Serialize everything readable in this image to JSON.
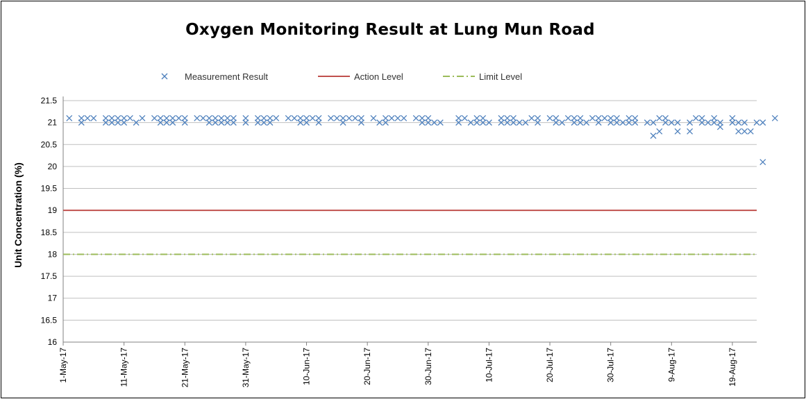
{
  "chart_data": {
    "type": "scatter",
    "title": "Oxygen Monitoring Result at Lung Mun Road",
    "ylabel": "Unit Concentration (%)",
    "xlabel": "",
    "ylim": [
      16,
      21.5
    ],
    "yticks": [
      21.5,
      21,
      20.5,
      20,
      19.5,
      19,
      18.5,
      18,
      17.5,
      17,
      16.5,
      16
    ],
    "xlim": [
      "2017-05-01",
      "2017-08-23"
    ],
    "xtick_labels": [
      "1-May-17",
      "11-May-17",
      "21-May-17",
      "31-May-17",
      "10-Jun-17",
      "20-Jun-17",
      "30-Jun-17",
      "10-Jul-17",
      "20-Jul-17",
      "30-Jul-17",
      "9-Aug-17",
      "19-Aug-17"
    ],
    "xtick_dates": [
      "2017-05-01",
      "2017-05-11",
      "2017-05-21",
      "2017-05-31",
      "2017-06-10",
      "2017-06-20",
      "2017-06-30",
      "2017-07-10",
      "2017-07-20",
      "2017-07-30",
      "2017-08-09",
      "2017-08-19"
    ],
    "grid": true,
    "legend_position": "top",
    "series": [
      {
        "name": "Measurement Result",
        "marker": "x",
        "color": "#4f81bd",
        "points": [
          [
            "2017-05-02",
            21.1
          ],
          [
            "2017-05-04",
            21.0
          ],
          [
            "2017-05-04",
            21.1
          ],
          [
            "2017-05-05",
            21.1
          ],
          [
            "2017-05-06",
            21.1
          ],
          [
            "2017-05-08",
            21.1
          ],
          [
            "2017-05-08",
            21.0
          ],
          [
            "2017-05-09",
            21.0
          ],
          [
            "2017-05-09",
            21.1
          ],
          [
            "2017-05-10",
            21.0
          ],
          [
            "2017-05-10",
            21.1
          ],
          [
            "2017-05-11",
            21.0
          ],
          [
            "2017-05-11",
            21.1
          ],
          [
            "2017-05-12",
            21.1
          ],
          [
            "2017-05-13",
            21.0
          ],
          [
            "2017-05-14",
            21.1
          ],
          [
            "2017-05-16",
            21.1
          ],
          [
            "2017-05-17",
            21.1
          ],
          [
            "2017-05-17",
            21.0
          ],
          [
            "2017-05-18",
            21.0
          ],
          [
            "2017-05-18",
            21.1
          ],
          [
            "2017-05-19",
            21.0
          ],
          [
            "2017-05-19",
            21.1
          ],
          [
            "2017-05-20",
            21.1
          ],
          [
            "2017-05-21",
            21.1
          ],
          [
            "2017-05-21",
            21.0
          ],
          [
            "2017-05-23",
            21.1
          ],
          [
            "2017-05-24",
            21.1
          ],
          [
            "2017-05-25",
            21.1
          ],
          [
            "2017-05-25",
            21.0
          ],
          [
            "2017-05-26",
            21.0
          ],
          [
            "2017-05-26",
            21.1
          ],
          [
            "2017-05-27",
            21.0
          ],
          [
            "2017-05-27",
            21.1
          ],
          [
            "2017-05-28",
            21.1
          ],
          [
            "2017-05-28",
            21.0
          ],
          [
            "2017-05-29",
            21.1
          ],
          [
            "2017-05-29",
            21.0
          ],
          [
            "2017-05-31",
            21.1
          ],
          [
            "2017-05-31",
            21.0
          ],
          [
            "2017-06-02",
            21.1
          ],
          [
            "2017-06-02",
            21.0
          ],
          [
            "2017-06-03",
            21.1
          ],
          [
            "2017-06-03",
            21.0
          ],
          [
            "2017-06-04",
            21.0
          ],
          [
            "2017-06-04",
            21.1
          ],
          [
            "2017-06-05",
            21.1
          ],
          [
            "2017-06-07",
            21.1
          ],
          [
            "2017-06-08",
            21.1
          ],
          [
            "2017-06-09",
            21.1
          ],
          [
            "2017-06-09",
            21.0
          ],
          [
            "2017-06-10",
            21.0
          ],
          [
            "2017-06-10",
            21.1
          ],
          [
            "2017-06-11",
            21.1
          ],
          [
            "2017-06-12",
            21.1
          ],
          [
            "2017-06-12",
            21.0
          ],
          [
            "2017-06-14",
            21.1
          ],
          [
            "2017-06-15",
            21.1
          ],
          [
            "2017-06-16",
            21.1
          ],
          [
            "2017-06-16",
            21.0
          ],
          [
            "2017-06-17",
            21.1
          ],
          [
            "2017-06-18",
            21.1
          ],
          [
            "2017-06-19",
            21.1
          ],
          [
            "2017-06-19",
            21.0
          ],
          [
            "2017-06-21",
            21.1
          ],
          [
            "2017-06-22",
            21.0
          ],
          [
            "2017-06-23",
            21.0
          ],
          [
            "2017-06-23",
            21.1
          ],
          [
            "2017-06-24",
            21.1
          ],
          [
            "2017-06-25",
            21.1
          ],
          [
            "2017-06-26",
            21.1
          ],
          [
            "2017-06-28",
            21.1
          ],
          [
            "2017-06-29",
            21.1
          ],
          [
            "2017-06-29",
            21.0
          ],
          [
            "2017-06-30",
            21.1
          ],
          [
            "2017-06-30",
            21.0
          ],
          [
            "2017-07-01",
            21.0
          ],
          [
            "2017-07-02",
            21.0
          ],
          [
            "2017-07-05",
            21.0
          ],
          [
            "2017-07-05",
            21.1
          ],
          [
            "2017-07-06",
            21.1
          ],
          [
            "2017-07-07",
            21.0
          ],
          [
            "2017-07-08",
            21.0
          ],
          [
            "2017-07-08",
            21.1
          ],
          [
            "2017-07-09",
            21.1
          ],
          [
            "2017-07-09",
            21.0
          ],
          [
            "2017-07-10",
            21.0
          ],
          [
            "2017-07-12",
            21.0
          ],
          [
            "2017-07-12",
            21.1
          ],
          [
            "2017-07-13",
            21.1
          ],
          [
            "2017-07-13",
            21.0
          ],
          [
            "2017-07-14",
            21.0
          ],
          [
            "2017-07-14",
            21.1
          ],
          [
            "2017-07-15",
            21.0
          ],
          [
            "2017-07-16",
            21.0
          ],
          [
            "2017-07-17",
            21.1
          ],
          [
            "2017-07-18",
            21.0
          ],
          [
            "2017-07-18",
            21.1
          ],
          [
            "2017-07-20",
            21.1
          ],
          [
            "2017-07-21",
            21.1
          ],
          [
            "2017-07-21",
            21.0
          ],
          [
            "2017-07-22",
            21.0
          ],
          [
            "2017-07-23",
            21.1
          ],
          [
            "2017-07-24",
            21.1
          ],
          [
            "2017-07-24",
            21.0
          ],
          [
            "2017-07-25",
            21.0
          ],
          [
            "2017-07-25",
            21.1
          ],
          [
            "2017-07-26",
            21.0
          ],
          [
            "2017-07-27",
            21.1
          ],
          [
            "2017-07-28",
            21.1
          ],
          [
            "2017-07-28",
            21.0
          ],
          [
            "2017-07-29",
            21.1
          ],
          [
            "2017-07-30",
            21.0
          ],
          [
            "2017-07-30",
            21.1
          ],
          [
            "2017-07-31",
            21.1
          ],
          [
            "2017-07-31",
            21.0
          ],
          [
            "2017-08-01",
            21.0
          ],
          [
            "2017-08-02",
            21.1
          ],
          [
            "2017-08-02",
            21.0
          ],
          [
            "2017-08-03",
            21.0
          ],
          [
            "2017-08-03",
            21.1
          ],
          [
            "2017-08-05",
            21.0
          ],
          [
            "2017-08-06",
            21.0
          ],
          [
            "2017-08-06",
            20.7
          ],
          [
            "2017-08-07",
            20.8
          ],
          [
            "2017-08-07",
            21.1
          ],
          [
            "2017-08-08",
            21.1
          ],
          [
            "2017-08-08",
            21.0
          ],
          [
            "2017-08-09",
            21.0
          ],
          [
            "2017-08-10",
            21.0
          ],
          [
            "2017-08-10",
            20.8
          ],
          [
            "2017-08-12",
            21.0
          ],
          [
            "2017-08-12",
            20.8
          ],
          [
            "2017-08-13",
            21.1
          ],
          [
            "2017-08-14",
            21.1
          ],
          [
            "2017-08-14",
            21.0
          ],
          [
            "2017-08-15",
            21.0
          ],
          [
            "2017-08-16",
            21.1
          ],
          [
            "2017-08-16",
            21.0
          ],
          [
            "2017-08-17",
            21.0
          ],
          [
            "2017-08-17",
            20.9
          ],
          [
            "2017-08-19",
            21.1
          ],
          [
            "2017-08-19",
            21.0
          ],
          [
            "2017-08-20",
            21.0
          ],
          [
            "2017-08-20",
            20.8
          ],
          [
            "2017-08-21",
            20.8
          ],
          [
            "2017-08-21",
            21.0
          ],
          [
            "2017-08-22",
            20.8
          ],
          [
            "2017-08-23",
            21.0
          ],
          [
            "2017-08-24",
            20.1
          ],
          [
            "2017-08-24",
            21.0
          ],
          [
            "2017-08-26",
            21.1
          ]
        ]
      },
      {
        "name": "Action Level",
        "type": "line",
        "color": "#c0504d",
        "value": 19
      },
      {
        "name": "Limit Level",
        "type": "line",
        "dash": "dash-dot",
        "color": "#9bbb59",
        "value": 18
      }
    ]
  }
}
